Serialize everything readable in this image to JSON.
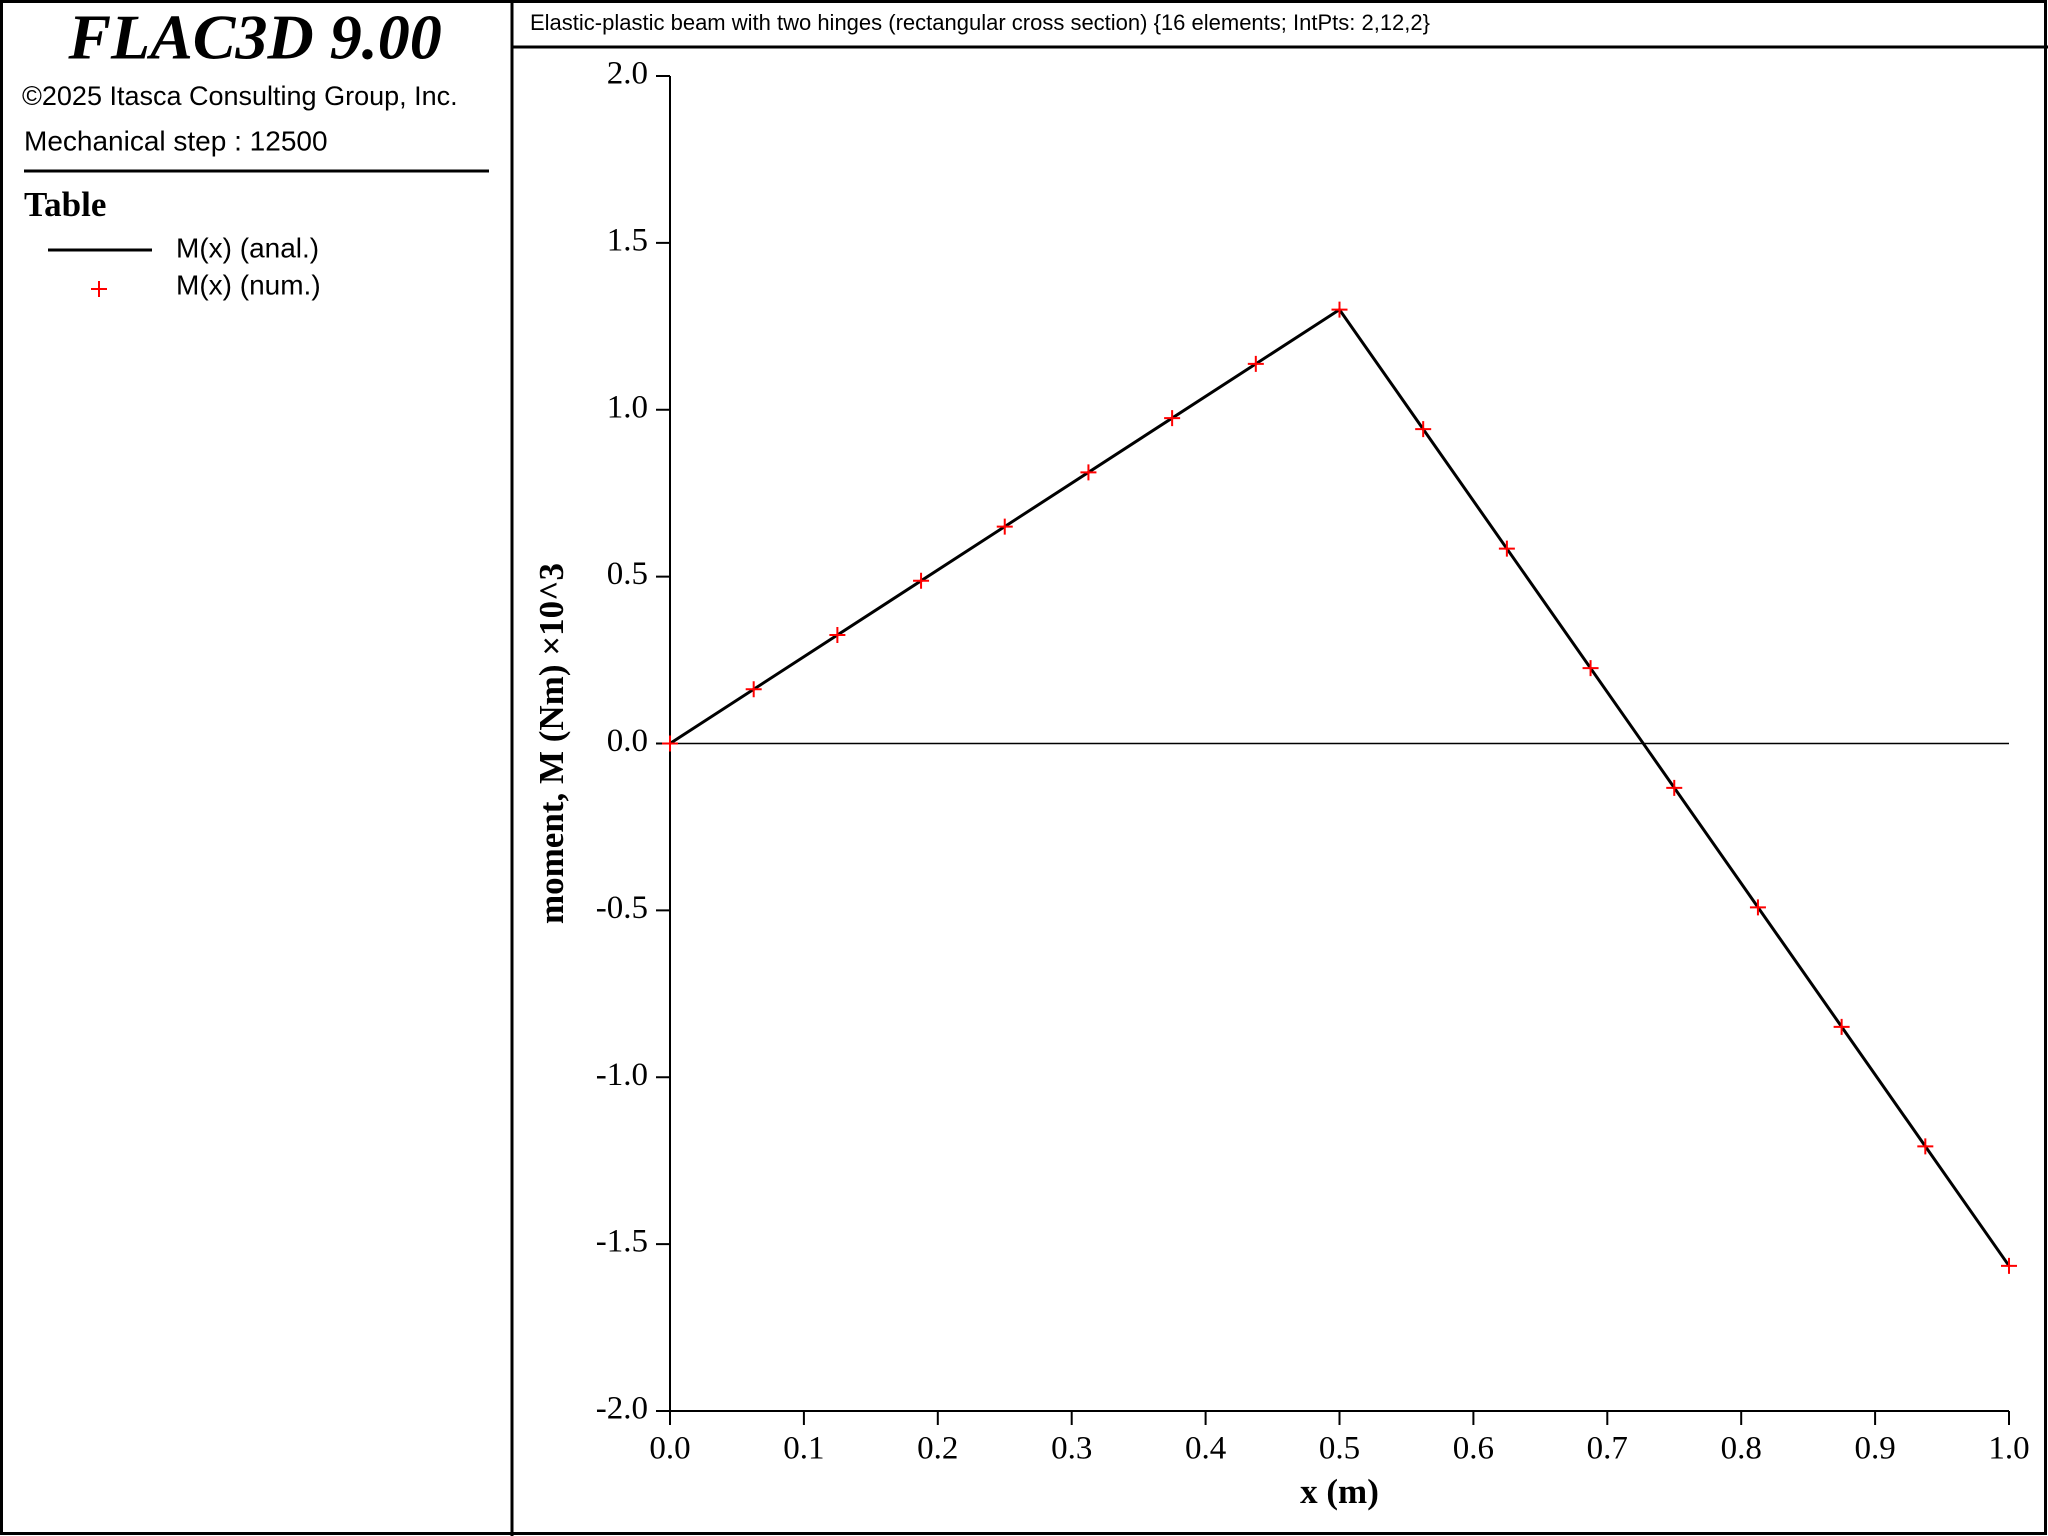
{
  "app": {
    "product": "FLAC3D 9.00",
    "copyright": "©2025 Itasca Consulting Group, Inc.",
    "step": "Mechanical step : 12500",
    "legend_title": "Table"
  },
  "chart_data": {
    "type": "line",
    "title": "Elastic-plastic beam with two hinges (rectangular cross section) {16 elements; IntPts: 2,12,2}",
    "x_label": "x (m)",
    "y_label": "moment, M (Nm) ×10^3",
    "xlim": [
      0,
      1
    ],
    "ylim": [
      -2,
      2
    ],
    "xticks": [
      {
        "value": 0,
        "label": "0.0"
      },
      0.1,
      0.2,
      0.3,
      0.4,
      0.5,
      0.6,
      0.7,
      0.8,
      0.9,
      {
        "value": 1,
        "label": "1.0"
      }
    ],
    "yticks": [
      {
        "value": -2,
        "label": "-2.0"
      },
      -1.5,
      {
        "value": -1,
        "label": "-1.0"
      },
      -0.5,
      {
        "value": 0,
        "label": "0.0"
      },
      0.5,
      {
        "value": 1,
        "label": "1.0"
      },
      1.5,
      {
        "value": 2,
        "label": "2.0"
      }
    ],
    "series": [
      {
        "name": "M(x) (anal.)",
        "color": "#000000",
        "marker": "line",
        "x": [
          0,
          0.5,
          1
        ],
        "values": [
          0,
          1.3,
          -1.565
        ]
      },
      {
        "name": "M(x) (num.)",
        "color": "#ff0000",
        "marker": "plus",
        "x": [
          0,
          0.0625,
          0.125,
          0.1875,
          0.25,
          0.3125,
          0.375,
          0.4375,
          0.5,
          0.5625,
          0.625,
          0.6875,
          0.75,
          0.8125,
          0.875,
          0.9375,
          1
        ],
        "values": [
          0,
          0.1625,
          0.325,
          0.4875,
          0.65,
          0.8125,
          0.975,
          1.1375,
          1.3,
          0.942,
          0.584,
          0.226,
          -0.133,
          -0.491,
          -0.849,
          -1.207,
          -1.565
        ]
      }
    ]
  }
}
